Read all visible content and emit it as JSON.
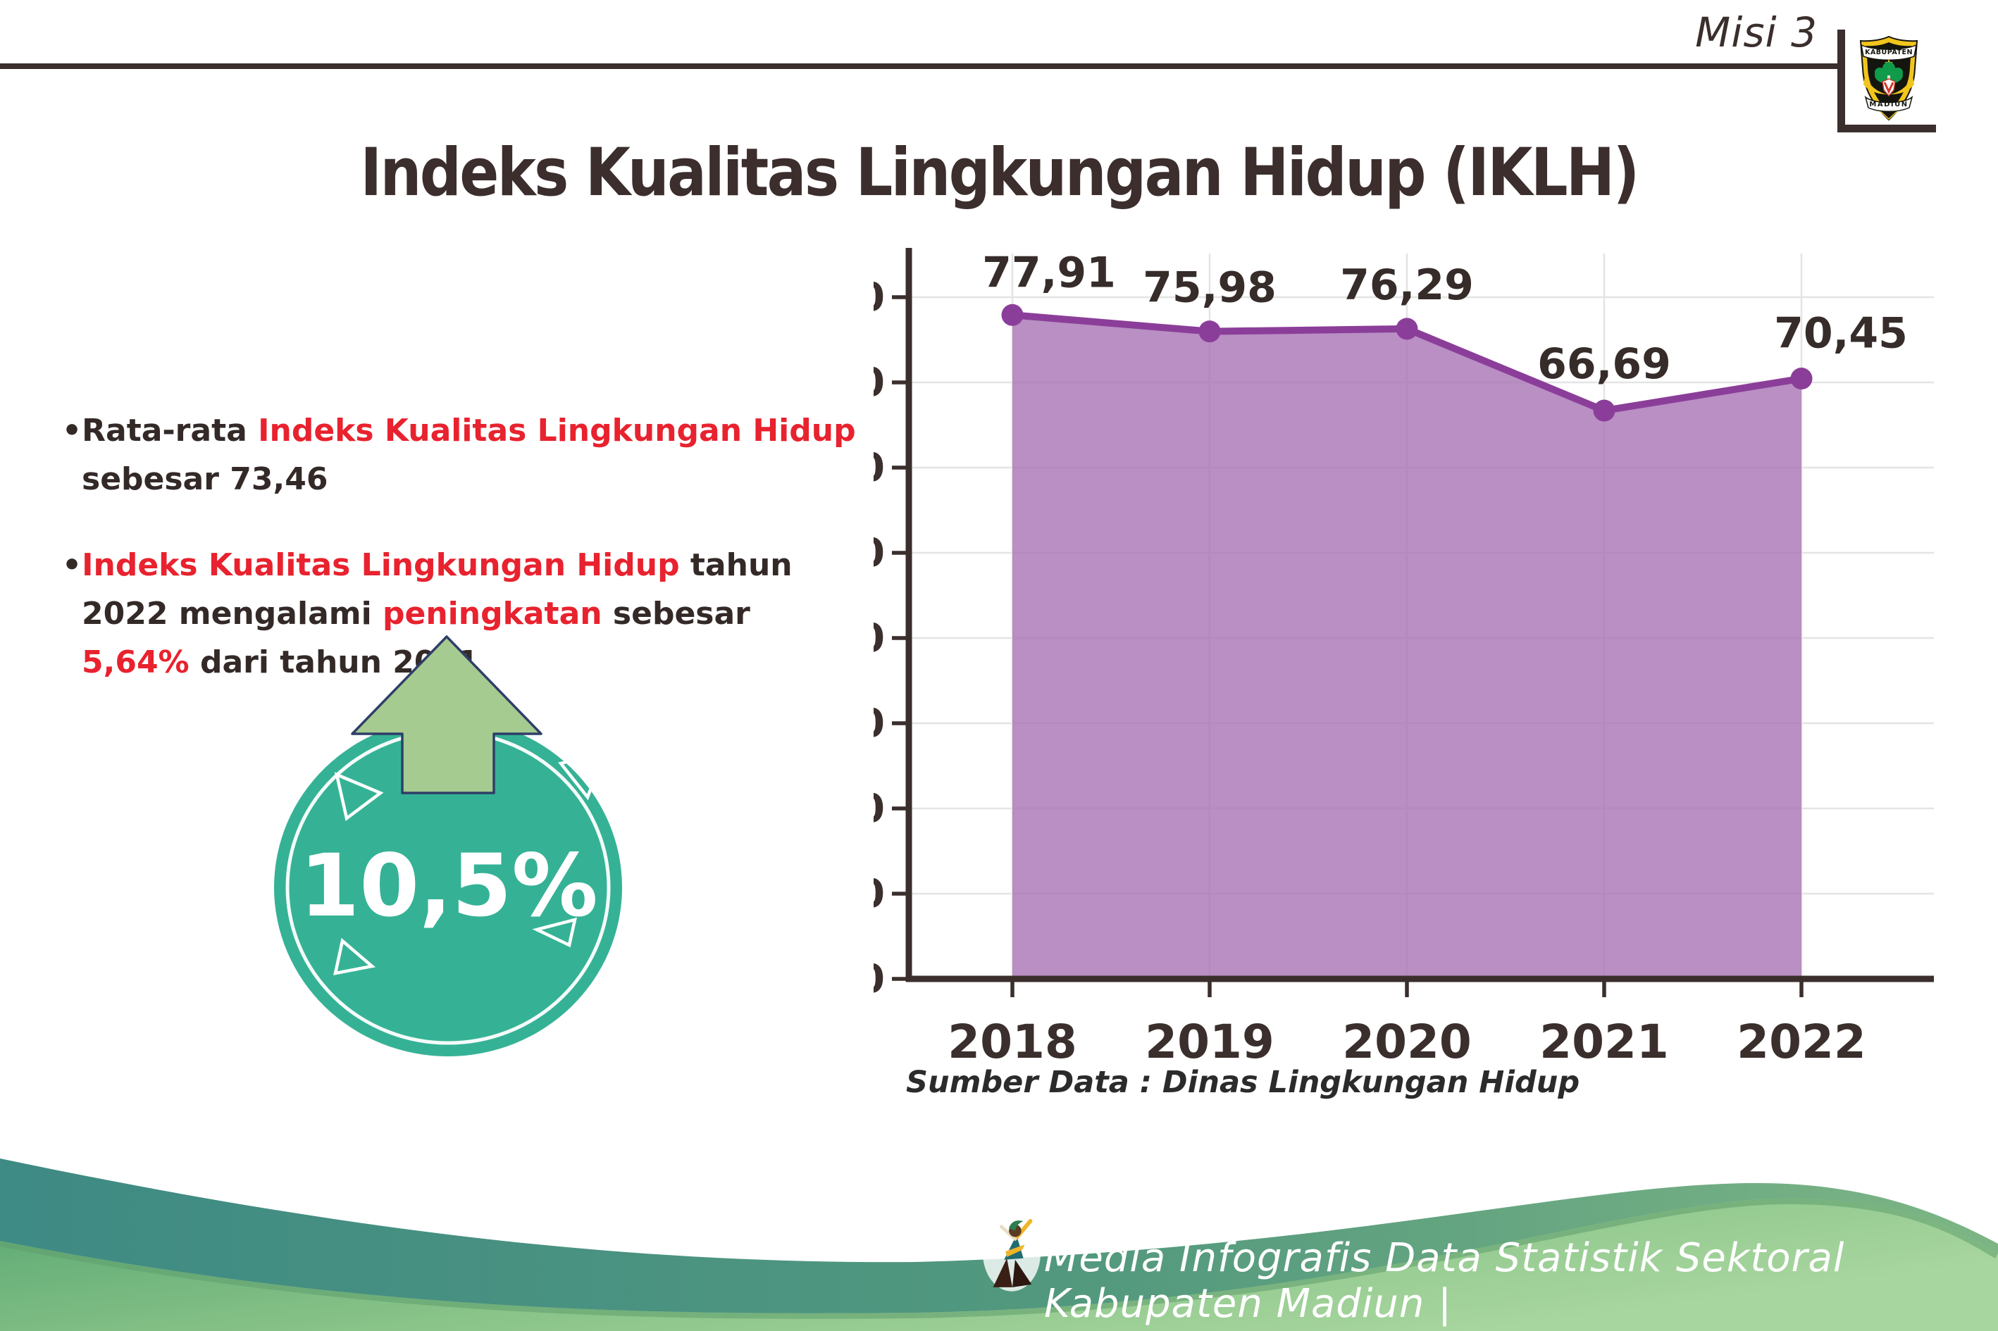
{
  "header": {
    "misi_label": "Misi 3",
    "title": "Indeks Kualitas Lingkungan Hidup (IKLH)",
    "logo": {
      "top_text": "KABUPATEN",
      "bottom_text": "MADIUN"
    }
  },
  "bullets": {
    "marker": "•",
    "item1": {
      "part1": "Rata-rata ",
      "part2": "Indeks Kualitas Lingkungan Hidup",
      "part3": " sebesar 73,46"
    },
    "item2": {
      "part1": "Indeks Kualitas Lingkungan Hidup",
      "part2": " tahun 2022 mengalami ",
      "part3": "peningkatan",
      "part4": " sebesar ",
      "part5": "5,64%",
      "part6": " dari tahun 2021"
    }
  },
  "badge": {
    "value": "10,5%"
  },
  "chart_data": {
    "type": "area",
    "title": "",
    "xlabel": "",
    "ylabel": "",
    "categories": [
      "2018",
      "2019",
      "2020",
      "2021",
      "2022"
    ],
    "values": [
      77.91,
      75.98,
      76.29,
      66.69,
      70.45
    ],
    "point_labels": [
      "77,91",
      "75,98",
      "76,29",
      "66,69",
      "70,45"
    ],
    "ylim": [
      0,
      80
    ],
    "ytick_step": 10,
    "grid": true,
    "legend": "none",
    "source_note": "Sumber Data : Dinas Lingkungan Hidup",
    "line_color": "#8b3e99",
    "fill_color": "#a873b5",
    "marker_color": "#8b3e99",
    "label_color": "#362c2a",
    "axis_color": "#3a2f2c",
    "grid_color": "#e4e4e4"
  },
  "footer": {
    "credit": "Media Infografis Data Statistik Sektoral Kabupaten Madiun |"
  },
  "colors": {
    "accent_red": "#e8222e",
    "text_dark": "#332a28",
    "badge_teal": "#35b295",
    "arrow_green": "#a6cb90",
    "footer_teal": "#3e8a84",
    "footer_green": "#7dbc82"
  }
}
